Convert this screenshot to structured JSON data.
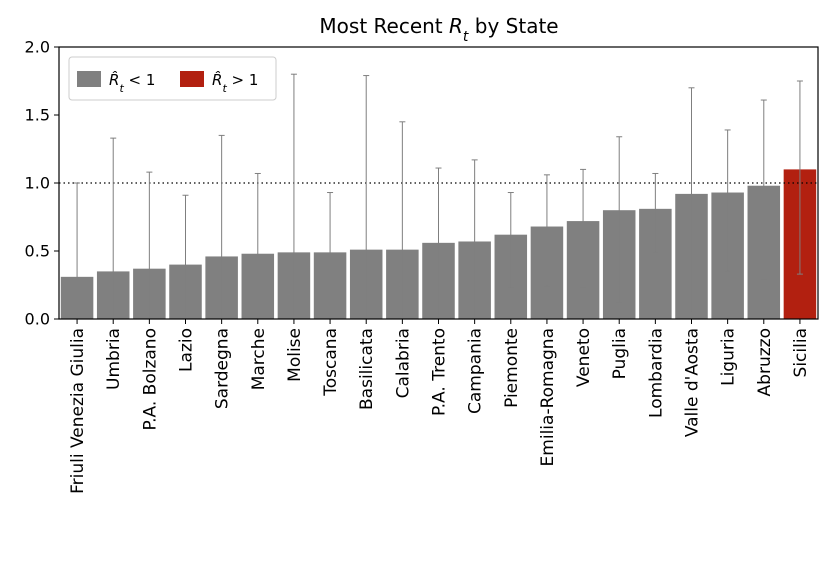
{
  "chart_data": {
    "type": "bar",
    "title": "Most Recent R_t by State",
    "title_parts": {
      "pre": "Most Recent ",
      "var": "R",
      "sub": "t",
      "post": " by State"
    },
    "xlabel": "",
    "ylabel": "",
    "ylim": [
      0,
      2
    ],
    "yticks": [
      "0.0",
      "0.5",
      "1.0",
      "1.5",
      "2.0"
    ],
    "reference_line": 1.0,
    "legend_position": "top-left",
    "legend": [
      {
        "var": "R̂",
        "sub": "t",
        "op": " < 1",
        "color": "#808080"
      },
      {
        "var": "R̂",
        "sub": "t",
        "op": " > 1",
        "color": "#b22010"
      }
    ],
    "categories": [
      "Friuli Venezia Giulia",
      "Umbria",
      "P.A. Bolzano",
      "Lazio",
      "Sardegna",
      "Marche",
      "Molise",
      "Toscana",
      "Basilicata",
      "Calabria",
      "P.A. Trento",
      "Campania",
      "Piemonte",
      "Emilia-Romagna",
      "Veneto",
      "Puglia",
      "Lombardia",
      "Valle d'Aosta",
      "Liguria",
      "Abruzzo",
      "Sicilia"
    ],
    "values": [
      0.31,
      0.35,
      0.37,
      0.4,
      0.46,
      0.48,
      0.49,
      0.49,
      0.51,
      0.51,
      0.56,
      0.57,
      0.62,
      0.68,
      0.72,
      0.8,
      0.81,
      0.92,
      0.93,
      0.98,
      1.1
    ],
    "lower": [
      0.0,
      0.0,
      0.0,
      0.0,
      0.0,
      0.0,
      0.0,
      0.0,
      0.0,
      0.0,
      0.0,
      0.01,
      0.23,
      0.24,
      0.23,
      0.12,
      0.49,
      0.05,
      0.35,
      0.29,
      0.33
    ],
    "upper": [
      1.0,
      1.33,
      1.08,
      0.91,
      1.35,
      1.07,
      1.8,
      0.93,
      1.79,
      1.45,
      1.11,
      1.17,
      0.93,
      1.06,
      1.1,
      1.34,
      1.07,
      1.7,
      1.39,
      1.61,
      1.75
    ],
    "colors": {
      "below": "#808080",
      "above": "#b22010",
      "errorbar": "#7f7f7f"
    }
  }
}
